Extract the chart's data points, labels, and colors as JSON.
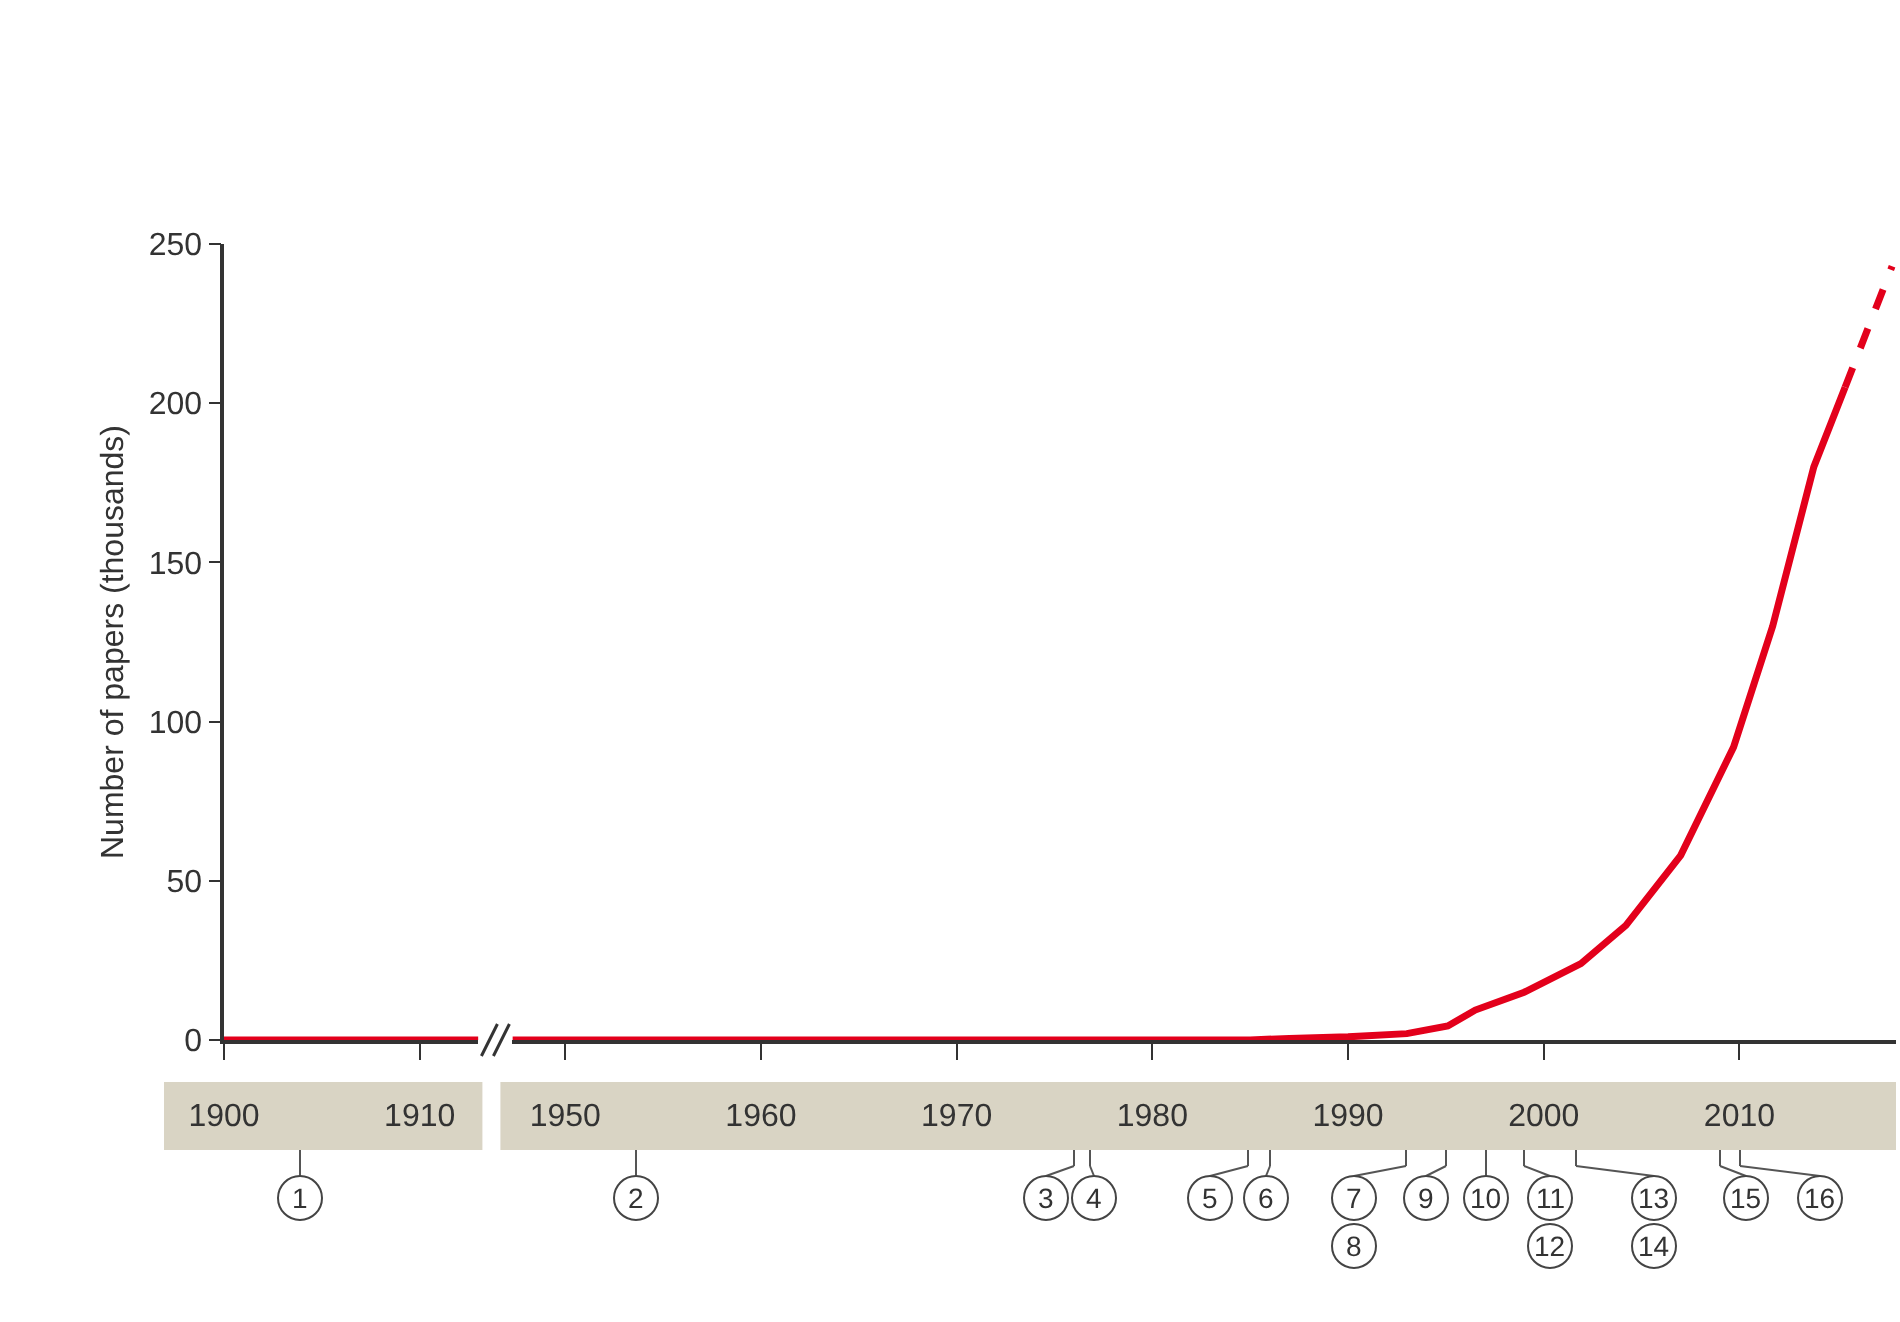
{
  "chart_data": [
    {
      "type": "line",
      "ylabel": "Number of papers (thousands)",
      "xlim": [
        1900,
        1913
      ],
      "xticks": [
        1900,
        1910
      ],
      "ylim": [
        0,
        250
      ],
      "yticks": [
        0,
        50,
        100,
        150,
        200,
        250
      ],
      "marker": "none",
      "series": [
        {
          "color": "#e3001b",
          "line_style": "solid",
          "x": [
            1900,
            1913
          ],
          "values": [
            0,
            0
          ]
        }
      ]
    },
    {
      "type": "line",
      "xlim": [
        1947.3,
        2018
      ],
      "xticks": [
        1950,
        1960,
        1970,
        1980,
        1990,
        2000,
        2010
      ],
      "ylim": [
        0,
        250
      ],
      "yticks": [
        0,
        50,
        100,
        150,
        200,
        250
      ],
      "tick_labels": "x",
      "marker": "none",
      "series": [
        {
          "color": "#e3001b",
          "line_style": "solid",
          "x": [
            1947.3,
            1985,
            1987,
            1990,
            1993,
            1995.1,
            1996.5,
            1999,
            2001.9,
            2004.2,
            2007,
            2009.7,
            2011.7,
            2013.8,
            2015.4
          ],
          "values": [
            0,
            0,
            0.5,
            1,
            2,
            4.4,
            9.4,
            15,
            24,
            36,
            58,
            92,
            130,
            180,
            205
          ]
        },
        {
          "color": "#e3001b",
          "line_style": "dashed",
          "x": [
            2015.4,
            2017.8
          ],
          "values": [
            205,
            243
          ]
        }
      ],
      "annotations": [
        "1",
        "2",
        "3",
        "4",
        "5",
        "6",
        "7",
        "8",
        "9",
        "10",
        "11",
        "12",
        "13",
        "14",
        "15",
        "16"
      ]
    }
  ]
}
